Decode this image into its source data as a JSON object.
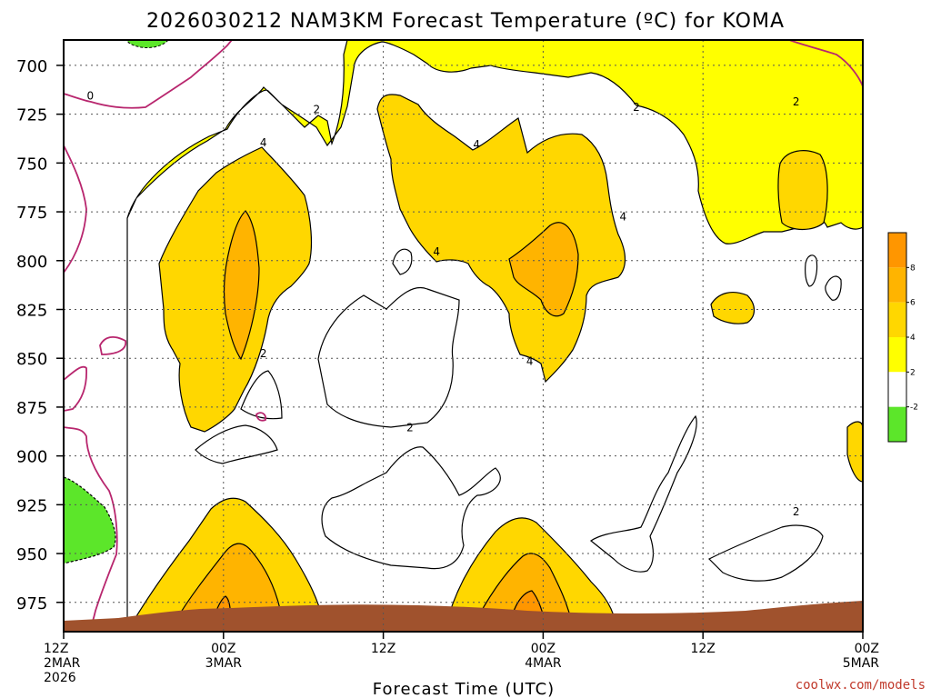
{
  "chart_data": {
    "type": "heatmap",
    "title": "2026030212 NAM3KM Forecast Temperature (ºC) for KOMA",
    "xlabel": "Forecast Time (UTC)",
    "credit": "coolwx.com/models",
    "y_ticks": [
      "700",
      "725",
      "750",
      "775",
      "800",
      "825",
      "850",
      "875",
      "900",
      "925",
      "950",
      "975"
    ],
    "x_ticks": [
      {
        "line1": "12Z",
        "line2": "2MAR",
        "line3": "2026"
      },
      {
        "line1": "00Z",
        "line2": "3MAR",
        "line3": ""
      },
      {
        "line1": "12Z",
        "line2": "",
        "line3": ""
      },
      {
        "line1": "00Z",
        "line2": "4MAR",
        "line3": ""
      },
      {
        "line1": "12Z",
        "line2": "",
        "line3": ""
      },
      {
        "line1": "00Z",
        "line2": "5MAR",
        "line3": ""
      }
    ],
    "colors": {
      "lt_neg2": "#5ce62a",
      "neg2_2": "#ffffff",
      "c2_4": "#ffff00",
      "c4_6": "#ffd700",
      "c6_8": "#ffb400",
      "gt_8": "#ff9600",
      "terrain": "#a0522d",
      "freezing_contour": "#b8266e"
    },
    "legend_ticks": [
      "8",
      "6",
      "4",
      "2",
      "-2"
    ],
    "contour_labels": [
      {
        "text": "0",
        "x_hours": 2,
        "p": 716
      },
      {
        "text": "2",
        "x_hours": 19,
        "p": 723
      },
      {
        "text": "4",
        "x_hours": 15,
        "p": 740
      },
      {
        "text": "4",
        "x_hours": 31,
        "p": 741
      },
      {
        "text": "2",
        "x_hours": 43,
        "p": 722
      },
      {
        "text": "2",
        "x_hours": 55,
        "p": 719
      },
      {
        "text": "4",
        "x_hours": 28,
        "p": 796
      },
      {
        "text": "4",
        "x_hours": 42,
        "p": 778
      },
      {
        "text": "2",
        "x_hours": 15,
        "p": 848
      },
      {
        "text": "4",
        "x_hours": 35,
        "p": 852
      },
      {
        "text": "2",
        "x_hours": 26,
        "p": 886
      },
      {
        "text": "2",
        "x_hours": 55,
        "p": 929
      }
    ]
  }
}
